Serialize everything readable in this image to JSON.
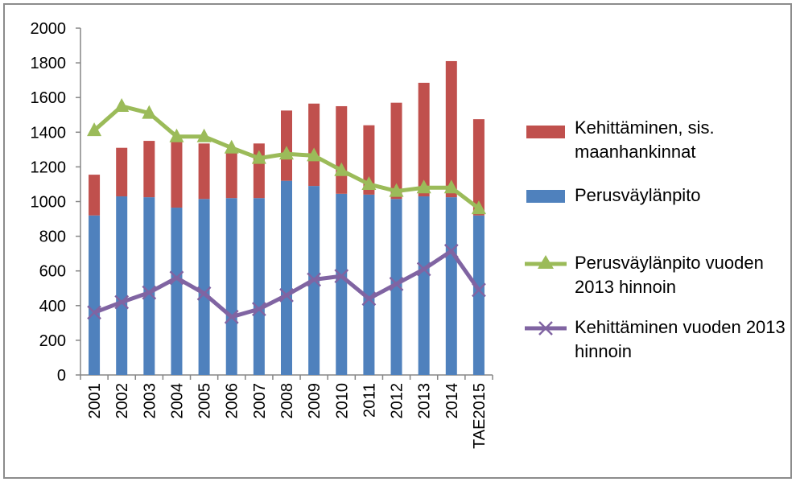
{
  "chart_data": {
    "type": "bar",
    "categories": [
      "2001",
      "2002",
      "2003",
      "2004",
      "2005",
      "2006",
      "2007",
      "2008",
      "2009",
      "2010",
      "2011",
      "2012",
      "2013",
      "2014",
      "TAE2015"
    ],
    "ylim": [
      0,
      2000
    ],
    "yticks": [
      0,
      200,
      400,
      600,
      800,
      1000,
      1200,
      1400,
      1600,
      1800,
      2000
    ],
    "stacked": true,
    "series": [
      {
        "name": "Perusväylänpito",
        "kind": "bar",
        "color": "#4f81bd",
        "values": [
          920,
          1030,
          1025,
          965,
          1015,
          1020,
          1020,
          1120,
          1090,
          1045,
          1040,
          1015,
          1030,
          1025,
          920
        ]
      },
      {
        "name": "Kehittäminen, sis. maanhankinnat",
        "kind": "bar",
        "color": "#c0504d",
        "values": [
          235,
          280,
          325,
          380,
          320,
          260,
          315,
          405,
          475,
          505,
          400,
          555,
          655,
          785,
          555
        ]
      },
      {
        "name": "Perusväylänpito vuoden 2013 hinnoin",
        "kind": "line",
        "marker": "triangle",
        "color": "#9bbb59",
        "values": [
          1410,
          1550,
          1510,
          1375,
          1375,
          1310,
          1250,
          1275,
          1265,
          1180,
          1100,
          1060,
          1080,
          1080,
          960
        ]
      },
      {
        "name": "Kehittäminen vuoden 2013 hinnoin",
        "kind": "line",
        "marker": "x",
        "color": "#8064a2",
        "values": [
          360,
          420,
          475,
          560,
          470,
          335,
          380,
          460,
          550,
          570,
          440,
          525,
          610,
          715,
          490
        ]
      }
    ],
    "legend_position": "right",
    "grid": false
  }
}
